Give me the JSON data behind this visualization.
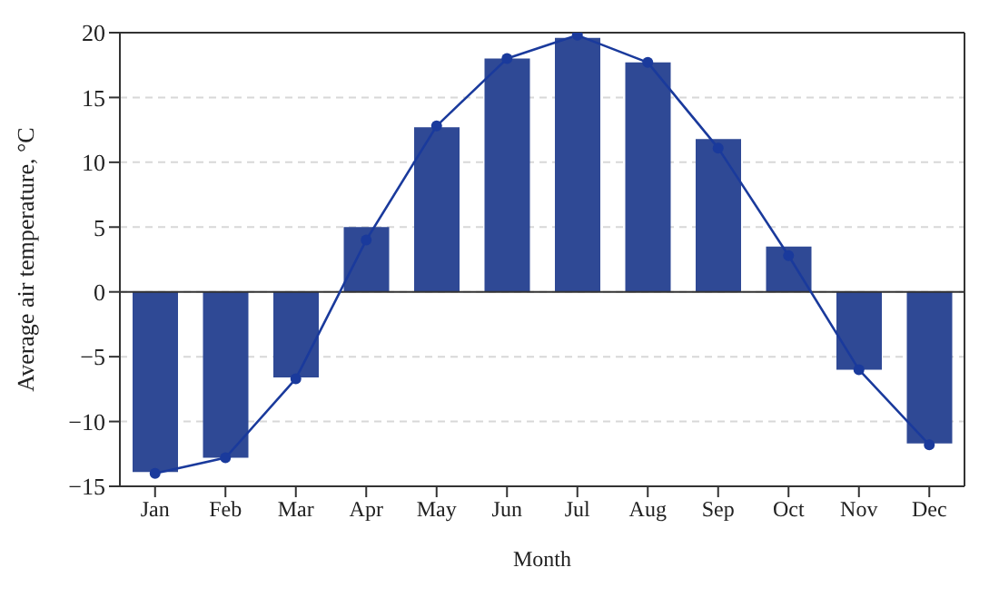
{
  "chart_data": {
    "type": "bar",
    "xlabel": "Month",
    "ylabel": "Average air temperature, °C",
    "categories": [
      "Jan",
      "Feb",
      "Mar",
      "Apr",
      "May",
      "Jun",
      "Jul",
      "Aug",
      "Sep",
      "Oct",
      "Nov",
      "Dec"
    ],
    "series": [
      {
        "color": "#2f4995",
        "values": [
          -13.9,
          -12.8,
          -6.6,
          5.0,
          12.7,
          18.0,
          19.6,
          17.7,
          11.8,
          3.5,
          -6.0,
          -11.7
        ]
      },
      {
        "type": "line",
        "color": "#1a3a9c",
        "values": [
          -14.0,
          -12.8,
          -6.7,
          4.0,
          12.8,
          18.0,
          19.8,
          17.7,
          11.1,
          2.8,
          -6.0,
          -11.8
        ]
      }
    ],
    "ylim": [
      -15,
      20
    ],
    "yticks": [
      -15,
      -10,
      -5,
      0,
      5,
      10,
      15,
      20
    ],
    "grid": "y",
    "marker": "circle",
    "line_style": "solid",
    "ref_lines": [
      {
        "axis": "y",
        "value": 0,
        "color": "#333333"
      }
    ]
  }
}
